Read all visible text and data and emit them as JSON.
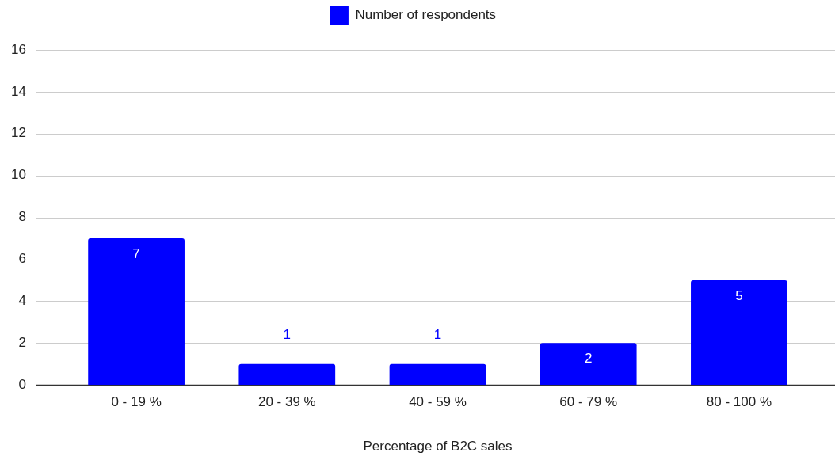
{
  "chart_data": {
    "type": "bar",
    "xlabel": "Percentage of B2C sales",
    "categories": [
      "0 - 19 %",
      "20 - 39 %",
      "40 - 59 %",
      "60 - 79 %",
      "80 - 100 %"
    ],
    "series": [
      {
        "name": "Number of respondents",
        "color": "#0000ff",
        "values": [
          7,
          1,
          1,
          2,
          5
        ]
      }
    ],
    "ylim": [
      0,
      16
    ],
    "yticks": [
      0,
      2,
      4,
      6,
      8,
      10,
      12,
      14,
      16
    ],
    "grid": "y",
    "legend": "top",
    "data_labels": true
  }
}
